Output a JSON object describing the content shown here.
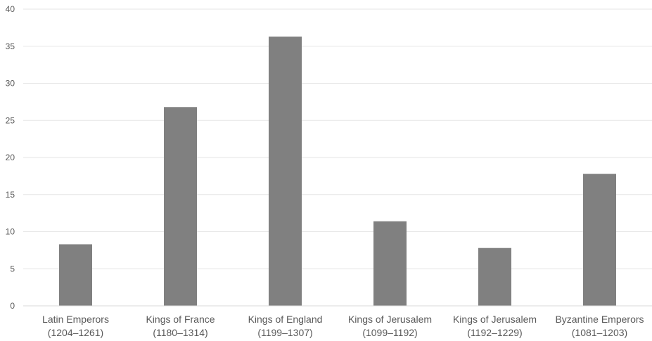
{
  "chart_data": {
    "type": "bar",
    "title": "",
    "xlabel": "",
    "ylabel": "",
    "ylim": [
      0,
      40
    ],
    "yticks": [
      0,
      5,
      10,
      15,
      20,
      25,
      30,
      35,
      40
    ],
    "grid": true,
    "legend": "none",
    "bar_color": "#808080",
    "categories": [
      [
        "Latin Emperors",
        "(1204–1261)"
      ],
      [
        "Kings of France",
        "(1180–1314)"
      ],
      [
        "Kings of England",
        "(1199–1307)"
      ],
      [
        "Kings of Jerusalem",
        "(1099–1192)"
      ],
      [
        "Kings of Jerusalem",
        "(1192–1229)"
      ],
      [
        "Byzantine Emperors",
        "(1081–1203)"
      ]
    ],
    "values": [
      8.3,
      26.8,
      36.3,
      11.4,
      7.8,
      17.8
    ]
  }
}
